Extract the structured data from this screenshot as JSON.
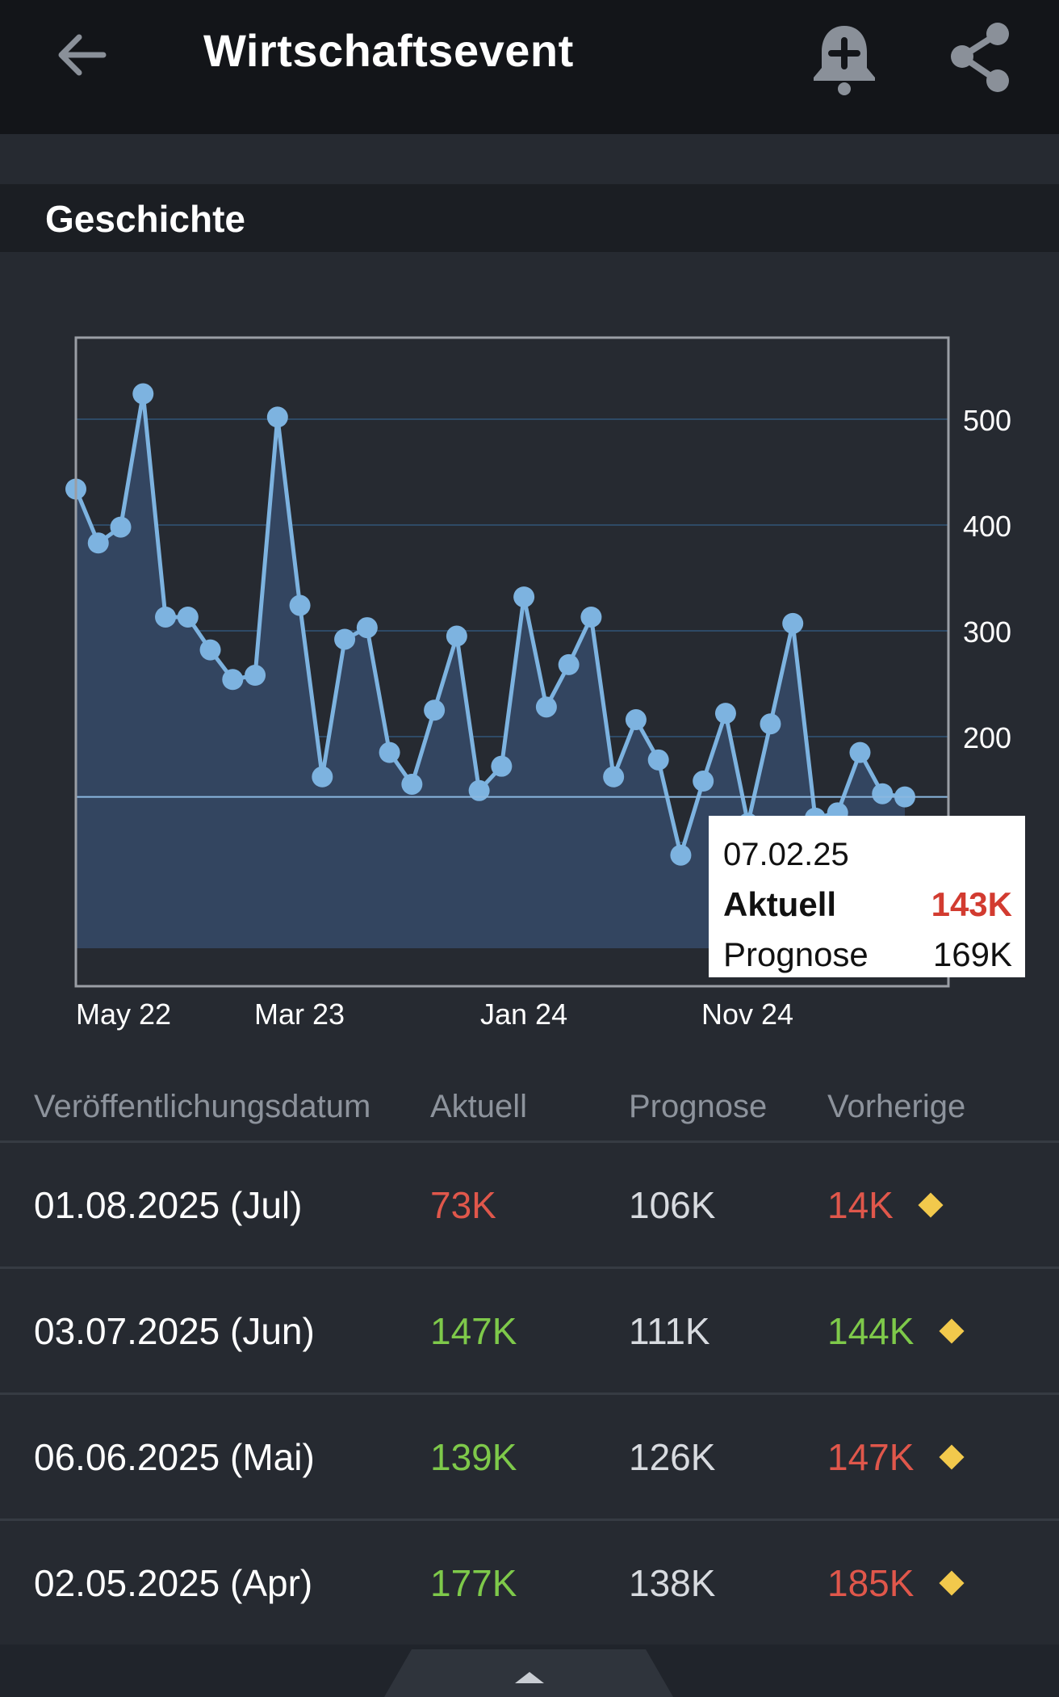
{
  "header": {
    "title": "Wirtschaftsevent",
    "back_icon": "arrow-left-icon",
    "bell_icon": "bell-plus-icon",
    "share_icon": "share-icon"
  },
  "section": {
    "title": "Geschichte"
  },
  "chart_data": {
    "type": "area",
    "y_ticks": [
      500,
      400,
      300,
      200
    ],
    "ylim": [
      0,
      560
    ],
    "x_tick_labels": [
      "May 22",
      "Mar 23",
      "Jan 24",
      "Nov 24"
    ],
    "series": [
      {
        "values": [
          434,
          383,
          398,
          524,
          313,
          313,
          282,
          254,
          258,
          502,
          324,
          162,
          292,
          303,
          185,
          155,
          225,
          295,
          149,
          172,
          332,
          228,
          268,
          313,
          162,
          216,
          178,
          88,
          158,
          222,
          118,
          212,
          307,
          123,
          128,
          185,
          146,
          143
        ],
        "color": "#7db3e0"
      }
    ],
    "highlight_index": 37,
    "grid": true
  },
  "tooltip": {
    "date": "07.02.25",
    "actual_label": "Aktuell",
    "actual_value": "143K",
    "forecast_label": "Prognose",
    "forecast_value": "169K"
  },
  "table": {
    "headers": [
      "Veröffentlichungsdatum",
      "Aktuell",
      "Prognose",
      "Vorherige"
    ],
    "rows": [
      {
        "date": "01.08.2025 (Jul)",
        "actual": "73K",
        "actual_status": "red",
        "forecast": "106K",
        "previous": "14K",
        "previous_status": "red",
        "marker": "diamond-icon"
      },
      {
        "date": "03.07.2025 (Jun)",
        "actual": "147K",
        "actual_status": "green",
        "forecast": "111K",
        "previous": "144K",
        "previous_status": "green",
        "marker": "diamond-icon"
      },
      {
        "date": "06.06.2025 (Mai)",
        "actual": "139K",
        "actual_status": "green",
        "forecast": "126K",
        "previous": "147K",
        "previous_status": "red",
        "marker": "diamond-icon"
      },
      {
        "date": "02.05.2025 (Apr)",
        "actual": "177K",
        "actual_status": "green",
        "forecast": "138K",
        "previous": "185K",
        "previous_status": "red",
        "marker": "diamond-icon"
      }
    ]
  },
  "colors": {
    "background": "#20242b",
    "topbar": "#131519",
    "line": "#7db3e0",
    "positive": "#7ec94a",
    "negative": "#e0574b",
    "diamond": "#f2c94c"
  }
}
